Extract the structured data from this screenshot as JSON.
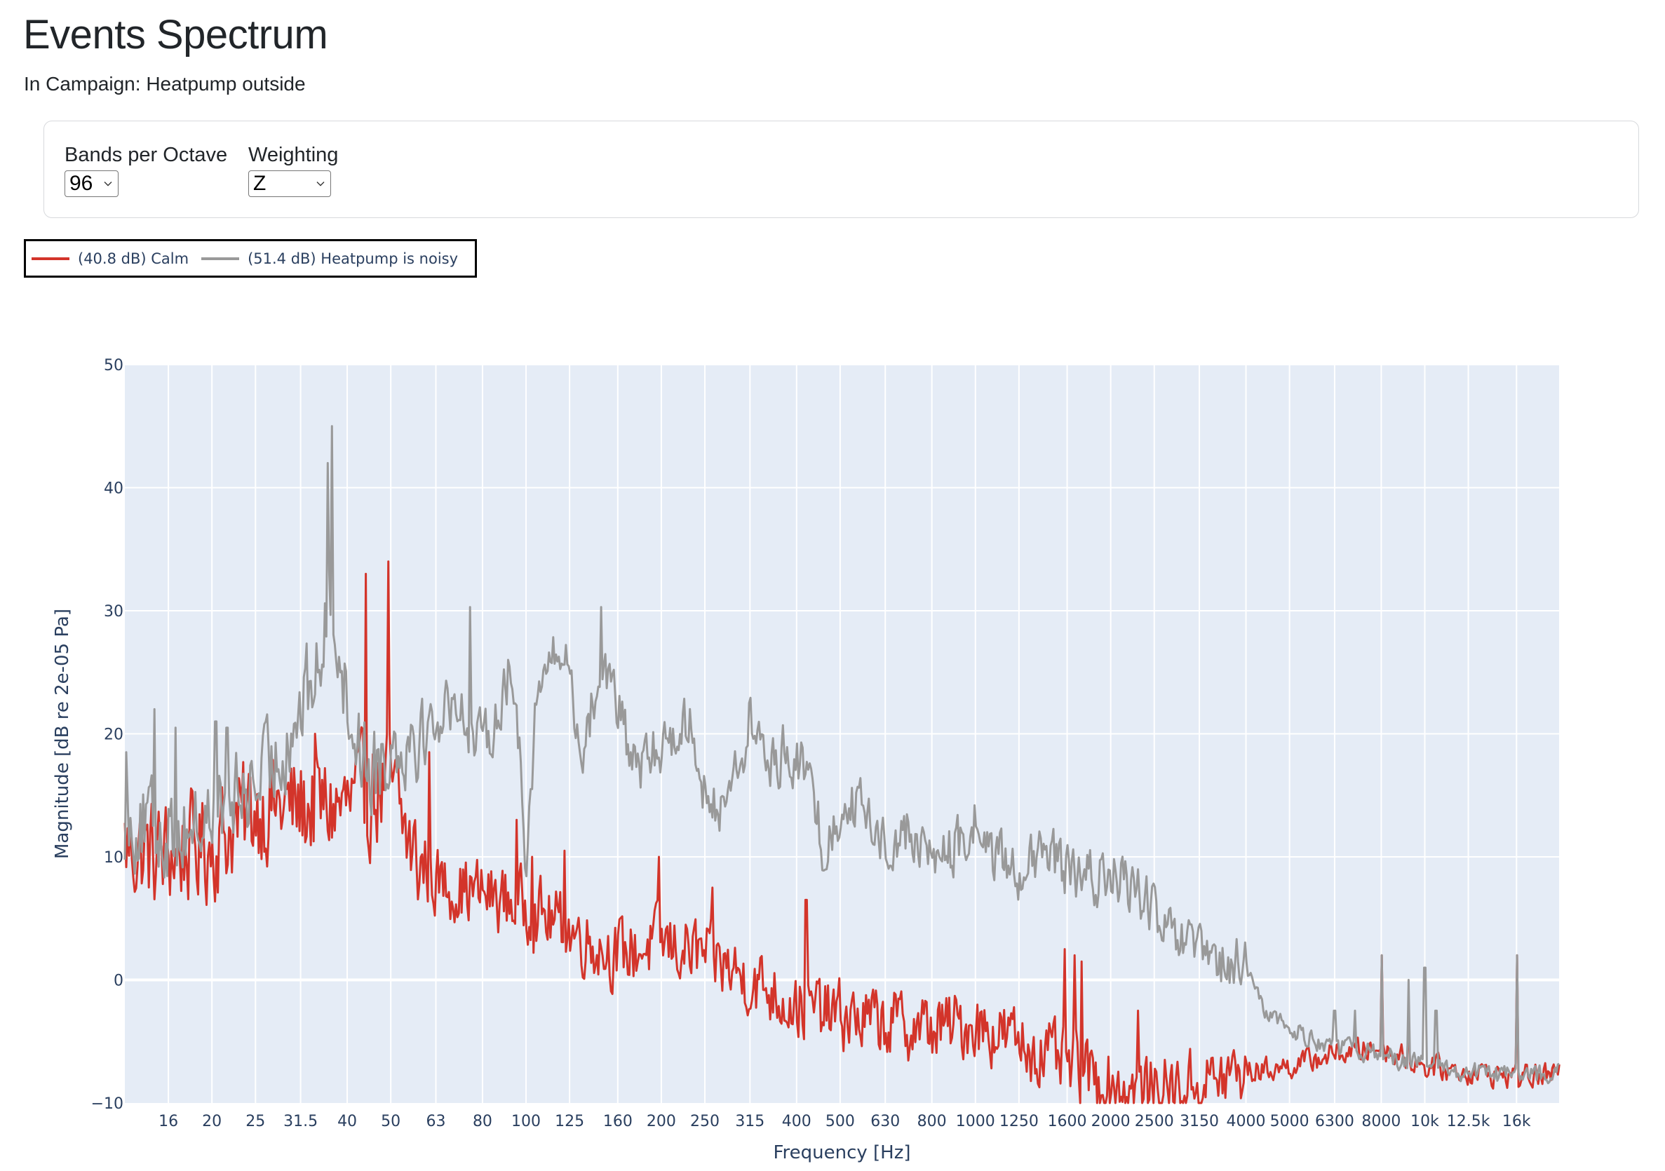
{
  "header": {
    "title": "Events Spectrum",
    "subtitle": "In Campaign: Heatpump outside"
  },
  "filters": {
    "bands_per_octave": {
      "label": "Bands per Octave",
      "value": "96"
    },
    "weighting": {
      "label": "Weighting",
      "value": "Z"
    }
  },
  "legend": {
    "items": [
      {
        "label": "(40.8 dB) Calm",
        "color": "#d3342a"
      },
      {
        "label": "(51.4 dB) Heatpump is noisy",
        "color": "#999999"
      }
    ]
  },
  "colors": {
    "plot_bg": "#e5ecf6",
    "grid": "#ffffff",
    "axis_text": "#2a3f5f"
  },
  "chart_data": {
    "type": "line",
    "title": "",
    "xlabel": "Frequency [Hz]",
    "ylabel": "Magnitude [dB re 2e-05 Pa]",
    "xscale": "log",
    "xlim": [
      12.8,
      19900
    ],
    "ylim": [
      -10,
      50
    ],
    "grid": true,
    "legend_position": "top-left (outside plot)",
    "x_ticks": [
      16,
      20,
      25,
      31.5,
      40,
      50,
      63,
      80,
      100,
      125,
      160,
      200,
      250,
      315,
      400,
      500,
      630,
      800,
      1000,
      1250,
      1600,
      2000,
      2500,
      3150,
      4000,
      5000,
      6300,
      8000,
      10000,
      12500,
      16000
    ],
    "x_tick_labels": [
      "16",
      "20",
      "25",
      "31.5",
      "40",
      "50",
      "63",
      "80",
      "100",
      "125",
      "160",
      "200",
      "250",
      "315",
      "400",
      "500",
      "630",
      "800",
      "1000",
      "1250",
      "1600",
      "2000",
      "2500",
      "3150",
      "4000",
      "5000",
      "6300",
      "8000",
      "10k",
      "12.5k",
      "16k"
    ],
    "y_ticks": [
      -10,
      0,
      10,
      20,
      30,
      40,
      50
    ],
    "y_tick_labels": [
      "−10",
      "0",
      "10",
      "20",
      "30",
      "40",
      "50"
    ],
    "series": [
      {
        "name": "(40.8 dB) Calm",
        "color": "#d3342a",
        "noise_db": 3.2,
        "envelope": [
          [
            12.8,
            11
          ],
          [
            15,
            10
          ],
          [
            20,
            11
          ],
          [
            25,
            14
          ],
          [
            31.5,
            14
          ],
          [
            40,
            14
          ],
          [
            50,
            16
          ],
          [
            56,
            10
          ],
          [
            63,
            8
          ],
          [
            80,
            7
          ],
          [
            100,
            6
          ],
          [
            125,
            4
          ],
          [
            160,
            2
          ],
          [
            200,
            3
          ],
          [
            250,
            2
          ],
          [
            315,
            0
          ],
          [
            400,
            -2
          ],
          [
            500,
            -3
          ],
          [
            630,
            -3.5
          ],
          [
            800,
            -4
          ],
          [
            1000,
            -3.5
          ],
          [
            1250,
            -5
          ],
          [
            1600,
            -7
          ],
          [
            2000,
            -8.5
          ],
          [
            2500,
            -9
          ],
          [
            3150,
            -8.5
          ],
          [
            4000,
            -7.5
          ],
          [
            5000,
            -7
          ],
          [
            6300,
            -6
          ],
          [
            8000,
            -5.5
          ],
          [
            10000,
            -7
          ],
          [
            12500,
            -7.5
          ],
          [
            16000,
            -7.8
          ],
          [
            19900,
            -7.8
          ]
        ],
        "spikes": [
          [
            12.9,
            -3
          ],
          [
            13.6,
            1
          ],
          [
            14.2,
            -2
          ],
          [
            21,
            -0.5
          ],
          [
            21.5,
            -0.5
          ],
          [
            34,
            20
          ],
          [
            44,
            33
          ],
          [
            49.5,
            34
          ],
          [
            61,
            18.5
          ],
          [
            64,
            2
          ],
          [
            95,
            13
          ],
          [
            103,
            10
          ],
          [
            122,
            10.5
          ],
          [
            198,
            10
          ],
          [
            260,
            7.5
          ],
          [
            420,
            6.5
          ],
          [
            1580,
            2.5
          ],
          [
            1660,
            2
          ],
          [
            1720,
            1.5
          ],
          [
            2300,
            -2.5
          ],
          [
            8000,
            2
          ],
          [
            9200,
            -3
          ],
          [
            16000,
            2
          ]
        ]
      },
      {
        "name": "(51.4 dB) Heatpump is noisy",
        "color": "#999999",
        "noise_db": 2.6,
        "envelope": [
          [
            12.8,
            13
          ],
          [
            16,
            12
          ],
          [
            20,
            13
          ],
          [
            25,
            16
          ],
          [
            28,
            18
          ],
          [
            31.5,
            22
          ],
          [
            35,
            26
          ],
          [
            37,
            32
          ],
          [
            40,
            22
          ],
          [
            45,
            17
          ],
          [
            50,
            19
          ],
          [
            56,
            20
          ],
          [
            63,
            21
          ],
          [
            70,
            23
          ],
          [
            78,
            19
          ],
          [
            85,
            21
          ],
          [
            92,
            25
          ],
          [
            97,
            19
          ],
          [
            100,
            10
          ],
          [
            105,
            22
          ],
          [
            112,
            26
          ],
          [
            125,
            26
          ],
          [
            132,
            18
          ],
          [
            140,
            22
          ],
          [
            150,
            26
          ],
          [
            160,
            22
          ],
          [
            175,
            17
          ],
          [
            190,
            18
          ],
          [
            210,
            20
          ],
          [
            235,
            21
          ],
          [
            255,
            13
          ],
          [
            275,
            15
          ],
          [
            300,
            18
          ],
          [
            320,
            21
          ],
          [
            350,
            17
          ],
          [
            380,
            19
          ],
          [
            430,
            16
          ],
          [
            465,
            10
          ],
          [
            490,
            13
          ],
          [
            520,
            15
          ],
          [
            580,
            13
          ],
          [
            630,
            11
          ],
          [
            700,
            12
          ],
          [
            800,
            10
          ],
          [
            950,
            11
          ],
          [
            1000,
            13
          ],
          [
            1100,
            10
          ],
          [
            1250,
            9
          ],
          [
            1500,
            10
          ],
          [
            1700,
            8
          ],
          [
            2000,
            8.5
          ],
          [
            2350,
            7
          ],
          [
            2600,
            4
          ],
          [
            3000,
            2.5
          ],
          [
            3500,
            1
          ],
          [
            4000,
            1.2
          ],
          [
            4300,
            -2
          ],
          [
            5000,
            -4
          ],
          [
            6300,
            -5.5
          ],
          [
            8000,
            -6
          ],
          [
            10000,
            -7
          ],
          [
            12500,
            -7.5
          ],
          [
            16000,
            -7.8
          ],
          [
            19900,
            -7.6
          ]
        ],
        "spikes": [
          [
            12.9,
            18.5
          ],
          [
            14.9,
            22
          ],
          [
            16.6,
            20.5
          ],
          [
            20.4,
            21
          ],
          [
            21.6,
            20.5
          ],
          [
            36.2,
            42
          ],
          [
            37,
            45
          ],
          [
            75,
            30.3
          ],
          [
            147,
            30.3
          ],
          [
            313,
            22.5
          ],
          [
            6300,
            -2.5
          ],
          [
            7000,
            -2.5
          ],
          [
            8000,
            2
          ],
          [
            9200,
            0
          ],
          [
            10000,
            1
          ],
          [
            10600,
            -2.5
          ],
          [
            16000,
            2
          ]
        ]
      }
    ]
  }
}
